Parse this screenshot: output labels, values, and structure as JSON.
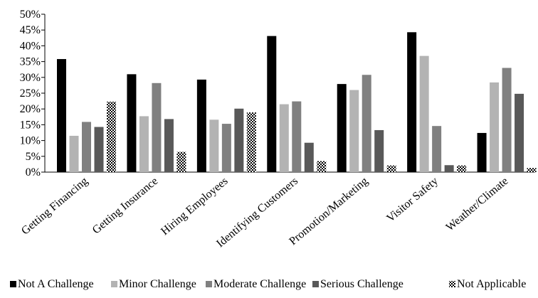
{
  "chart_data": {
    "type": "bar",
    "title": "",
    "xlabel": "",
    "ylabel": "",
    "ylim": [
      0,
      50
    ],
    "y_ticks": [
      "0%",
      "5%",
      "10%",
      "15%",
      "20%",
      "25%",
      "30%",
      "35%",
      "40%",
      "45%",
      "50%"
    ],
    "grid": false,
    "legend_position": "bottom",
    "categories": [
      "Getting Financing",
      "Getting Insurance",
      "Hiring Employees",
      "Identifying Customers",
      "Promotion/Marketing",
      "Visitor Safety",
      "Weather/Climate"
    ],
    "series": [
      {
        "name": "Not A Challenge",
        "color": "#000000",
        "pattern": "solid",
        "values": [
          35.8,
          31.0,
          29.3,
          43.1,
          27.9,
          44.3,
          12.4
        ]
      },
      {
        "name": "Minor Challenge",
        "color": "#b3b3b3",
        "pattern": "solid",
        "values": [
          11.5,
          17.7,
          16.6,
          21.5,
          26.0,
          36.8,
          28.4
        ]
      },
      {
        "name": "Moderate Challenge",
        "color": "#808080",
        "pattern": "solid",
        "values": [
          15.9,
          28.2,
          15.3,
          22.4,
          30.8,
          14.6,
          33.0
        ]
      },
      {
        "name": "Serious Challenge",
        "color": "#595959",
        "pattern": "solid",
        "values": [
          14.3,
          16.8,
          20.1,
          9.3,
          13.3,
          2.2,
          24.8
        ]
      },
      {
        "name": "Not Applicable",
        "color": "#000000",
        "pattern": "checker",
        "values": [
          22.3,
          6.4,
          18.9,
          3.5,
          2.1,
          2.1,
          1.3
        ]
      }
    ]
  }
}
